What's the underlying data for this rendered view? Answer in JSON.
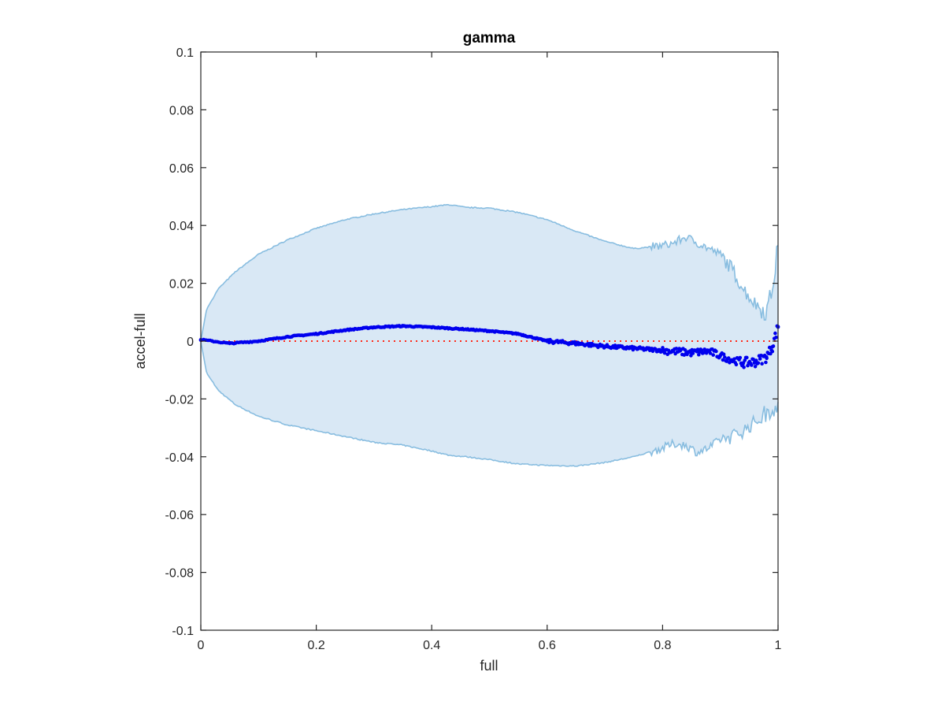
{
  "chart_data": {
    "type": "scatter",
    "title": "gamma",
    "xlabel": "full",
    "ylabel": "accel-full",
    "xlim": [
      0,
      1
    ],
    "ylim": [
      -0.1,
      0.1
    ],
    "x_ticks": [
      0,
      0.2,
      0.4,
      0.6,
      0.8,
      1
    ],
    "x_tick_labels": [
      "0",
      "0.2",
      "0.4",
      "0.6",
      "0.8",
      "1"
    ],
    "y_ticks": [
      -0.1,
      -0.08,
      -0.06,
      -0.04,
      -0.02,
      0,
      0.02,
      0.04,
      0.06,
      0.08,
      0.1
    ],
    "y_tick_labels": [
      "-0.1",
      "-0.08",
      "-0.06",
      "-0.04",
      "-0.02",
      "0",
      "0.02",
      "0.04",
      "0.06",
      "0.08",
      "0.1"
    ],
    "grid": false,
    "colors": {
      "band_fill": "#d9e8f5",
      "band_edge": "#88bde0",
      "points": "#0000ee",
      "reference_line": "#ff2a1a",
      "axes": "#262626"
    },
    "series": [
      {
        "kind": "band",
        "x": [
          0,
          0.01,
          0.03,
          0.06,
          0.1,
          0.15,
          0.2,
          0.25,
          0.3,
          0.35,
          0.4,
          0.43,
          0.46,
          0.5,
          0.55,
          0.6,
          0.65,
          0.7,
          0.75,
          0.8,
          0.82,
          0.84,
          0.86,
          0.88,
          0.9,
          0.92,
          0.94,
          0.96,
          0.98,
          0.99,
          1.0
        ],
        "upper": [
          0,
          0.011,
          0.018,
          0.024,
          0.03,
          0.035,
          0.039,
          0.042,
          0.044,
          0.0455,
          0.0465,
          0.0472,
          0.0462,
          0.046,
          0.0445,
          0.042,
          0.038,
          0.0345,
          0.032,
          0.033,
          0.034,
          0.036,
          0.034,
          0.032,
          0.03,
          0.025,
          0.018,
          0.013,
          0.01,
          0.018,
          0.033
        ],
        "lower": [
          0,
          -0.011,
          -0.017,
          -0.022,
          -0.026,
          -0.029,
          -0.031,
          -0.033,
          -0.035,
          -0.036,
          -0.038,
          -0.0395,
          -0.04,
          -0.041,
          -0.0425,
          -0.043,
          -0.0432,
          -0.042,
          -0.04,
          -0.037,
          -0.0355,
          -0.036,
          -0.0385,
          -0.037,
          -0.034,
          -0.033,
          -0.031,
          -0.028,
          -0.025,
          -0.023,
          -0.022
        ]
      },
      {
        "kind": "reference_line",
        "y": 0
      },
      {
        "kind": "points",
        "x": [
          0,
          0.02,
          0.05,
          0.1,
          0.15,
          0.2,
          0.25,
          0.3,
          0.35,
          0.4,
          0.45,
          0.5,
          0.55,
          0.6,
          0.65,
          0.7,
          0.75,
          0.8,
          0.85,
          0.88,
          0.9,
          0.92,
          0.94,
          0.96,
          0.98,
          0.99,
          1.0
        ],
        "y": [
          0.0005,
          0.0,
          -0.0008,
          0.0,
          0.0015,
          0.0025,
          0.0038,
          0.0048,
          0.0052,
          0.0048,
          0.0042,
          0.0035,
          0.0025,
          0.0,
          -0.0008,
          -0.0018,
          -0.0025,
          -0.0032,
          -0.004,
          -0.0035,
          -0.005,
          -0.0065,
          -0.0075,
          -0.0072,
          -0.0055,
          -0.002,
          0.005
        ]
      }
    ]
  }
}
